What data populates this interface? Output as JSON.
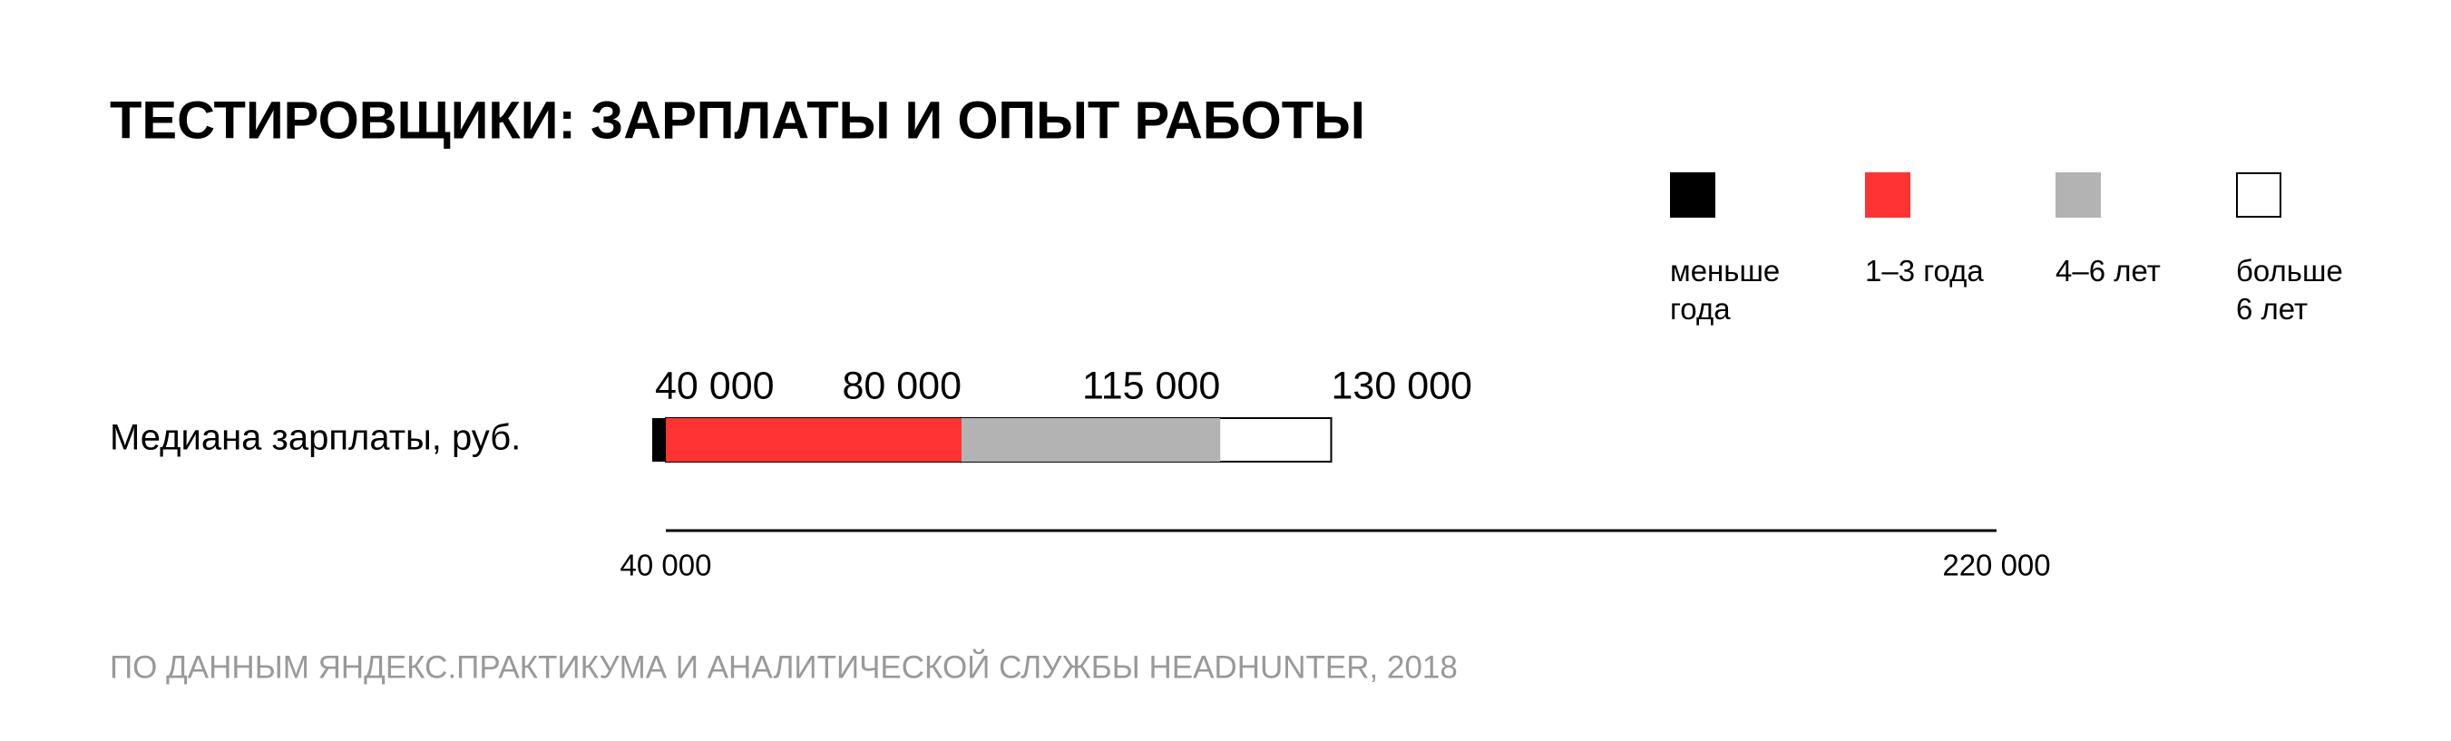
{
  "chart_data": {
    "type": "bar",
    "orientation": "horizontal",
    "title": "ТЕСТИРОВЩИКИ: ЗАРПЛАТЫ И ОПЫТ РАБОТЫ",
    "categories": [
      "Медиана зарплаты, руб."
    ],
    "series": [
      {
        "name": "меньше года",
        "color": "#000000",
        "values": [
          40000
        ],
        "value_labels": [
          "40 000"
        ]
      },
      {
        "name": "1–3 года",
        "color": "#ff3333",
        "values": [
          80000
        ],
        "value_labels": [
          "80 000"
        ]
      },
      {
        "name": "4–6 лет",
        "color": "#b3b3b3",
        "values": [
          115000
        ],
        "value_labels": [
          "115 000"
        ]
      },
      {
        "name": "больше 6 лет",
        "color": "#ffffff",
        "values": [
          130000
        ],
        "value_labels": [
          "130 000"
        ]
      }
    ],
    "xlim": [
      40000,
      220000
    ],
    "xticks": [
      {
        "value": 40000,
        "label": "40 000"
      },
      {
        "value": 220000,
        "label": "220 000"
      }
    ],
    "source": "ПО ДАННЫМ ЯНДЕКС.ПРАКТИКУМА И АНАЛИТИЧЕСКОЙ СЛУЖБЫ HEADHUNTER, 2018"
  }
}
